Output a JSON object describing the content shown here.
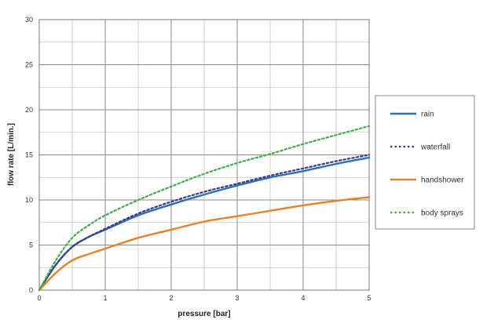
{
  "chart_data": {
    "type": "line",
    "title": "",
    "xlabel": "pressure [bar]",
    "ylabel": "flow rate [L/min.]",
    "xlim": [
      0,
      5
    ],
    "ylim": [
      0,
      30
    ],
    "x_ticks": [
      0,
      1,
      2,
      3,
      4,
      5
    ],
    "y_ticks": [
      0,
      5,
      10,
      15,
      20,
      25,
      30
    ],
    "grid": true,
    "legend_position": "right",
    "series": [
      {
        "name": "rain",
        "color": "#2f6fb0",
        "style": "solid",
        "x": [
          0,
          0.25,
          0.5,
          0.75,
          1,
          1.5,
          2,
          2.5,
          3,
          3.5,
          4,
          4.5,
          5
        ],
        "y": [
          0,
          2.8,
          4.8,
          5.9,
          6.7,
          8.3,
          9.5,
          10.6,
          11.6,
          12.5,
          13.2,
          14.0,
          14.7
        ]
      },
      {
        "name": "waterfall",
        "color": "#3a3a8c",
        "style": "dotted",
        "x": [
          0,
          0.25,
          0.5,
          0.75,
          1,
          1.5,
          2,
          2.5,
          3,
          3.5,
          4,
          4.5,
          5
        ],
        "y": [
          0,
          2.8,
          4.8,
          5.9,
          6.8,
          8.5,
          9.8,
          10.9,
          11.8,
          12.7,
          13.5,
          14.3,
          15.0
        ]
      },
      {
        "name": "handshower",
        "color": "#e8812a",
        "style": "solid",
        "x": [
          0,
          0.25,
          0.5,
          0.75,
          1,
          1.5,
          2,
          2.5,
          3,
          3.5,
          4,
          4.5,
          5
        ],
        "y": [
          0,
          1.9,
          3.3,
          4.0,
          4.6,
          5.8,
          6.7,
          7.6,
          8.2,
          8.8,
          9.4,
          9.9,
          10.3
        ]
      },
      {
        "name": "body sprays",
        "color": "#3fae4a",
        "style": "dotted",
        "x": [
          0,
          0.25,
          0.5,
          0.75,
          1,
          1.5,
          2,
          2.5,
          3,
          3.5,
          4,
          4.5,
          5
        ],
        "y": [
          0,
          3.3,
          5.8,
          7.2,
          8.3,
          10.0,
          11.5,
          12.9,
          14.1,
          15.1,
          16.2,
          17.2,
          18.2
        ]
      }
    ]
  }
}
